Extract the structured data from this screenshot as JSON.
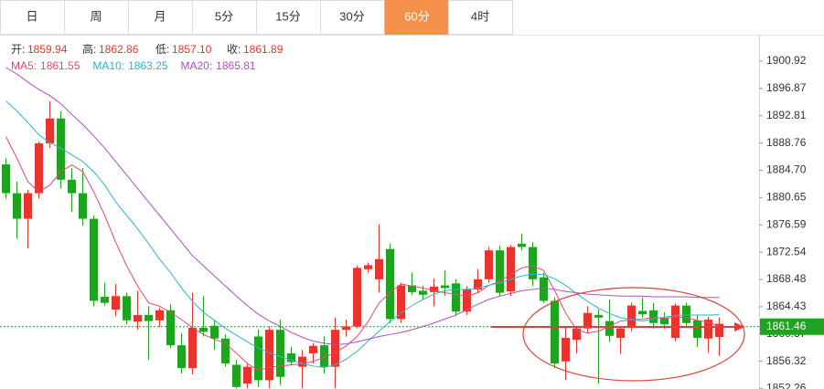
{
  "tabs": [
    "日",
    "周",
    "月",
    "5分",
    "15分",
    "30分",
    "60分",
    "4时"
  ],
  "info": [
    {
      "label": "开:",
      "value": "1859.94"
    },
    {
      "label": "高:",
      "value": "1862.86"
    },
    {
      "label": "低:",
      "value": "1857.10"
    },
    {
      "label": "收:",
      "value": "1861.89"
    }
  ],
  "chart_data": {
    "type": "candlestick",
    "up_color": "#e8342c",
    "down_color": "#1ea41e",
    "open": [
      1885.6,
      1881.3,
      1877.5,
      1881.3,
      1888.7,
      1892.4,
      1883.3,
      1881.3,
      1877.5,
      1865.9,
      1864,
      1866,
      1862.2,
      1863.2,
      1862.4,
      1863.9,
      1858.7,
      1855.3,
      1861.3,
      1861.6,
      1859.7,
      1855.8,
      1853,
      1860,
      1853.5,
      1861,
      1857.5,
      1855.5,
      1857.5,
      1858.7,
      1855.5,
      1861,
      1861.5,
      1870,
      1868.5,
      1873,
      1862.6,
      1867.6,
      1866.8,
      1866.6,
      1867.6,
      1867.9,
      1863.7,
      1867,
      1868.5,
      1872.8,
      1866.7,
      1873.8,
      1873.3,
      1868.8,
      1865.3,
      1856.3,
      1859.5,
      1861.2,
      1863.2,
      1862.3,
      1859.8,
      1861.3,
      1863.8,
      1863.9,
      1862.7,
      1859.8,
      1864.6,
      1862.4,
      1859.7,
      1859.94
    ],
    "high": [
      1886.5,
      1883,
      1881.8,
      1889,
      1895,
      1893.5,
      1885,
      1885,
      1878,
      1868,
      1867.8,
      1866.5,
      1866.8,
      1864.5,
      1864.3,
      1864.8,
      1860.5,
      1866.5,
      1866,
      1862.5,
      1860.3,
      1856.5,
      1856,
      1861,
      1861.5,
      1862.5,
      1858.5,
      1858,
      1859,
      1860,
      1862.8,
      1862.5,
      1870.5,
      1871,
      1876.7,
      1873.8,
      1868,
      1869.5,
      1867.5,
      1868.6,
      1869.8,
      1868.5,
      1867.5,
      1870,
      1873.3,
      1873.5,
      1873.6,
      1875.3,
      1874,
      1869.5,
      1865.8,
      1861.3,
      1861.6,
      1864.5,
      1864,
      1865.5,
      1861.6,
      1865,
      1865.8,
      1865,
      1863.6,
      1864.9,
      1865,
      1863.3,
      1862.9,
      1862.86
    ],
    "low": [
      1880.5,
      1874.5,
      1873.1,
      1880.5,
      1888,
      1882,
      1878.5,
      1876.5,
      1864.5,
      1864.6,
      1863,
      1861.8,
      1861,
      1856.5,
      1861.4,
      1858.3,
      1854.5,
      1854.4,
      1860,
      1858,
      1855.5,
      1852.3,
      1852.3,
      1852.5,
      1852.3,
      1852.8,
      1855.8,
      1852.3,
      1856,
      1854.5,
      1852.3,
      1860,
      1861.2,
      1869.5,
      1866.5,
      1862,
      1862,
      1866.2,
      1865.5,
      1864.5,
      1866,
      1863,
      1863.2,
      1866.5,
      1868,
      1866,
      1866,
      1872.8,
      1867.5,
      1865,
      1855.3,
      1853.5,
      1857.5,
      1860.5,
      1853,
      1859.2,
      1857.4,
      1860.8,
      1862.8,
      1861.2,
      1861.1,
      1859.3,
      1861.6,
      1858.5,
      1857.6,
      1857.1
    ],
    "close": [
      1881.3,
      1877.5,
      1881.3,
      1888.7,
      1892.4,
      1883.3,
      1881.3,
      1877.5,
      1865.3,
      1865,
      1866,
      1862.4,
      1863.2,
      1862.3,
      1863.9,
      1858.7,
      1855.3,
      1861.3,
      1860.7,
      1859.7,
      1856,
      1852.5,
      1855.5,
      1853.5,
      1861,
      1854,
      1856.2,
      1857,
      1858.6,
      1855.5,
      1861,
      1861.5,
      1870.2,
      1870.6,
      1871.5,
      1862.6,
      1867.6,
      1866.6,
      1866.2,
      1867.4,
      1867.2,
      1863.7,
      1867,
      1868.5,
      1872.8,
      1866.5,
      1873.3,
      1873.3,
      1868.5,
      1865.3,
      1856,
      1859.8,
      1861.2,
      1863.5,
      1862.8,
      1860.1,
      1861.2,
      1864.6,
      1863.3,
      1862,
      1861.8,
      1864.6,
      1862,
      1859.8,
      1862.5,
      1861.89
    ],
    "series": [
      {
        "name": "MA5:",
        "value_label": "1861.55",
        "color": "#e4467a",
        "values": [
          1889.7,
          1886.5,
          1883.0,
          1881.5,
          1882.5,
          1884.5,
          1885.5,
          1884.5,
          1881.5,
          1878.0,
          1874.0,
          1870.5,
          1867.5,
          1865.0,
          1864.5,
          1863.6,
          1862.5,
          1861.3,
          1860.3,
          1859.6,
          1859.0,
          1857.5,
          1856.0,
          1855.0,
          1855.4,
          1855.6,
          1855.8,
          1855.9,
          1856.3,
          1856.9,
          1857.6,
          1858.6,
          1860.0,
          1862.2,
          1865.0,
          1866.5,
          1867.8,
          1867.5,
          1867.2,
          1866.8,
          1866.5,
          1866.3,
          1866.0,
          1866.5,
          1867.6,
          1868.2,
          1869.2,
          1870.2,
          1870.5,
          1869.8,
          1866.8,
          1863.5,
          1861.0,
          1860.5,
          1860.8,
          1861.5,
          1862.3,
          1862.5,
          1862.6,
          1862.8,
          1862.7,
          1862.9,
          1862.8,
          1862.4,
          1862.1,
          1861.55
        ]
      },
      {
        "name": "MA10:",
        "value_label": "1863.25",
        "color": "#27b4d4",
        "values": [
          1895.0,
          1893.5,
          1891.8,
          1890.0,
          1888.8,
          1888.0,
          1887.0,
          1886.0,
          1884.5,
          1882.5,
          1880.0,
          1878.0,
          1876.0,
          1873.8,
          1871.5,
          1869.5,
          1867.2,
          1865.2,
          1863.6,
          1862.4,
          1861.2,
          1860.2,
          1859.2,
          1858.3,
          1857.6,
          1857.0,
          1856.5,
          1856.0,
          1855.6,
          1855.4,
          1855.8,
          1856.6,
          1857.8,
          1859.3,
          1860.8,
          1862.2,
          1863.5,
          1864.6,
          1865.5,
          1866.3,
          1866.8,
          1867.0,
          1867.0,
          1867.2,
          1867.6,
          1868.0,
          1868.5,
          1869.0,
          1869.3,
          1869.2,
          1868.6,
          1867.6,
          1866.4,
          1865.2,
          1864.2,
          1863.4,
          1862.8,
          1862.5,
          1862.3,
          1862.6,
          1862.9,
          1863.1,
          1863.2,
          1863.2,
          1863.2,
          1863.25
        ]
      },
      {
        "name": "MA20:",
        "value_label": "1865.81",
        "color": "#b04dc6",
        "values": [
          1900.0,
          1899.0,
          1897.8,
          1896.7,
          1895.8,
          1894.6,
          1893.0,
          1891.5,
          1889.8,
          1888.0,
          1886.0,
          1884.0,
          1882.0,
          1880.0,
          1878.0,
          1876.0,
          1874.0,
          1872.0,
          1870.5,
          1869.0,
          1867.5,
          1866.0,
          1864.6,
          1863.3,
          1862.3,
          1861.5,
          1860.6,
          1859.9,
          1859.3,
          1859.0,
          1858.8,
          1858.9,
          1859.2,
          1859.6,
          1860.0,
          1860.3,
          1860.6,
          1861.0,
          1861.5,
          1862.0,
          1862.6,
          1863.2,
          1864.0,
          1864.8,
          1865.5,
          1866.0,
          1866.4,
          1866.8,
          1867.0,
          1867.2,
          1867.0,
          1866.7,
          1866.5,
          1866.3,
          1866.2,
          1866.1,
          1866.0,
          1866.0,
          1866.0,
          1865.9,
          1865.9,
          1865.9,
          1865.9,
          1865.8,
          1865.8,
          1865.81
        ]
      }
    ],
    "ylim": [
      1852.2,
      1904.58
    ],
    "yticks": [
      {
        "value": 1900.92,
        "label": "1900.92"
      },
      {
        "value": 1896.87,
        "label": "1896.87"
      },
      {
        "value": 1892.81,
        "label": "1892.81"
      },
      {
        "value": 1888.76,
        "label": "1888.76"
      },
      {
        "value": 1884.7,
        "label": "1884.70"
      },
      {
        "value": 1880.65,
        "label": "1880.65"
      },
      {
        "value": 1876.59,
        "label": "1876.59"
      },
      {
        "value": 1872.54,
        "label": "1872.54"
      },
      {
        "value": 1868.48,
        "label": "1868.48"
      },
      {
        "value": 1864.43,
        "label": "1864.43"
      },
      {
        "value": 1860.37,
        "label": "1860.37"
      },
      {
        "value": 1856.32,
        "label": "1856.32"
      },
      {
        "value": 1852.26,
        "label": "1852.26"
      }
    ],
    "last_price": {
      "value": 1861.46,
      "label": "1861.46",
      "color": "#1ea41e"
    },
    "grid": false
  }
}
